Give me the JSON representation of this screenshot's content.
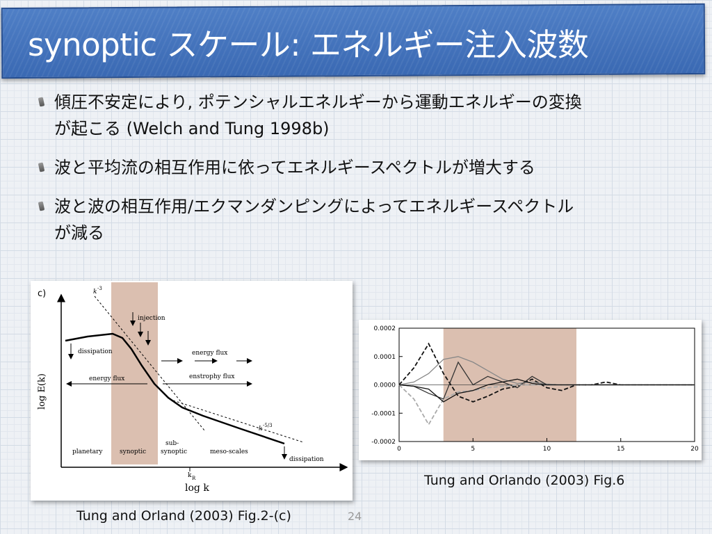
{
  "slide": {
    "title": "synoptic スケール: エネルギー注入波数",
    "bullets": [
      {
        "line1": "傾圧不安定により, ポテンシャルエネルギーから運動エネルギーの変換",
        "line2": "が起こる (Welch and Tung 1998b)"
      },
      {
        "line1": "波と平均流の相互作用に依ってエネルギースペクトルが増大する",
        "line2": ""
      },
      {
        "line1": "波と波の相互作用/エクマンダンピングによってエネルギースペクトル",
        "line2": "が減る"
      }
    ],
    "page_number": "24",
    "figure1": {
      "caption": "Tung and Orland (2003) Fig.2-(c)",
      "panel_label": "c)",
      "ylabel": "log E(k)",
      "xlabel": "log k",
      "kr_label": "k",
      "kr_sub": "R",
      "slope1_base": "k",
      "slope1_exp": "-3",
      "slope2_base": "k",
      "slope2_exp": "-5/3",
      "annotations": {
        "injection": "injection",
        "dissipation_left": "dissipation",
        "dissipation_right": "dissipation",
        "energy_flux_right": "energy flux",
        "energy_flux_left": "energy flux",
        "enstrophy_flux": "enstrophy flux"
      },
      "regions": {
        "planetary": "planetary",
        "synoptic": "synoptic",
        "sub": "sub-",
        "subsynoptic": "synoptic",
        "meso": "meso-scales"
      }
    },
    "figure2": {
      "caption": "Tung and Orlando (2003) Fig.6"
    }
  },
  "chart_data": {
    "type": "line",
    "title": "",
    "xlabel": "",
    "ylabel": "",
    "xlim": [
      0,
      20
    ],
    "ylim": [
      -0.0002,
      0.0002
    ],
    "xticks": [
      "0",
      "5",
      "10",
      "15",
      "20"
    ],
    "yticks": [
      "0.0002",
      "0.0001",
      "0.0000",
      "-0.0001",
      "-0.0002"
    ],
    "shaded_range": [
      3,
      12
    ],
    "series": [
      {
        "name": "dashed-black",
        "style": "dashed",
        "color": "#111111",
        "x": [
          0,
          1,
          2,
          3,
          4,
          5,
          6,
          7,
          8,
          9,
          10,
          11,
          12,
          13,
          14,
          15,
          16,
          17,
          18,
          19,
          20
        ],
        "y": [
          0,
          6e-05,
          0.000145,
          4e-05,
          -4e-05,
          -6e-05,
          -4e-05,
          -1.5e-05,
          -5e-06,
          2e-05,
          -1e-05,
          -2e-05,
          0,
          0,
          1e-05,
          0,
          0,
          0,
          0,
          0,
          0
        ]
      },
      {
        "name": "solid-gray",
        "style": "solid",
        "color": "#888888",
        "x": [
          0,
          1,
          2,
          3,
          4,
          5,
          6,
          7,
          8,
          9,
          10,
          11,
          12,
          13,
          14,
          15,
          16,
          17,
          18,
          19,
          20
        ],
        "y": [
          0,
          1e-05,
          4e-05,
          9e-05,
          0.0001,
          8e-05,
          5e-05,
          2e-05,
          5e-06,
          1e-05,
          3e-06,
          0,
          0,
          0,
          0,
          0,
          0,
          0,
          0,
          0,
          0
        ]
      },
      {
        "name": "solid-dark",
        "style": "solid",
        "color": "#333333",
        "x": [
          0,
          1,
          2,
          3,
          4,
          5,
          6,
          7,
          8,
          9,
          10,
          11,
          12,
          13,
          14,
          15,
          16,
          17,
          18,
          19,
          20
        ],
        "y": [
          0,
          -5e-06,
          -3e-05,
          -5e-05,
          8e-05,
          0,
          3e-05,
          1e-05,
          -1e-05,
          3e-05,
          0,
          0,
          0,
          0,
          0,
          0,
          0,
          0,
          0,
          0,
          0
        ]
      },
      {
        "name": "dashed-gray",
        "style": "dashed",
        "color": "#aaaaaa",
        "x": [
          0,
          1,
          2,
          3,
          4,
          5,
          6,
          7,
          8,
          9,
          10,
          11,
          12,
          13,
          14,
          15,
          16,
          17,
          18,
          19,
          20
        ],
        "y": [
          0,
          -5e-05,
          -0.00014,
          -5e-05,
          -2.5e-05,
          -2e-05,
          -1e-05,
          -5e-06,
          0,
          0,
          0,
          0,
          0,
          0,
          0,
          0,
          0,
          0,
          0,
          0,
          0
        ]
      },
      {
        "name": "solid-black",
        "style": "solid",
        "color": "#111111",
        "x": [
          0,
          1,
          2,
          3,
          4,
          5,
          6,
          7,
          8,
          9,
          10,
          11,
          12,
          13,
          14,
          15,
          16,
          17,
          18,
          19,
          20
        ],
        "y": [
          0,
          -5e-06,
          -1.5e-05,
          -6e-05,
          -3e-05,
          -2e-05,
          0,
          1e-05,
          2e-05,
          5e-06,
          0,
          0,
          0,
          0,
          0,
          0,
          0,
          0,
          0,
          0,
          0
        ]
      }
    ]
  }
}
